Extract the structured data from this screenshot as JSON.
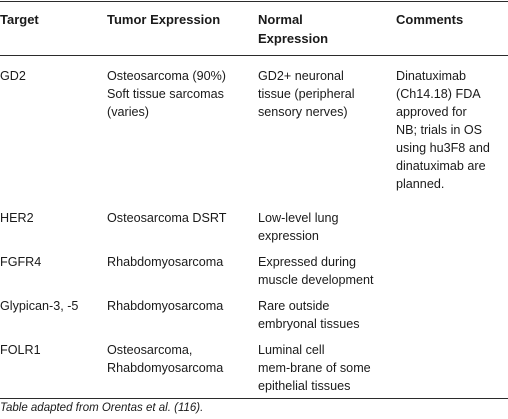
{
  "table": {
    "headers": [
      "Target",
      "Tumor Expression",
      "Normal\nExpression",
      "Comments"
    ],
    "rows": [
      {
        "target": "GD2",
        "tumor": "Osteosarcoma (90%)\nSoft tissue sarcomas\n(varies)",
        "normal": "GD2+ neuronal\ntissue (peripheral\nsensory nerves)",
        "comments": "Dinatuximab\n(Ch14.18) FDA\napproved for\nNB; trials in OS\nusing hu3F8 and\ndinatuximab are\nplanned."
      },
      {
        "target": "HER2",
        "tumor": "Osteosarcoma DSRT",
        "normal": "Low-level lung\nexpression",
        "comments": ""
      },
      {
        "target": "FGFR4",
        "tumor": "Rhabdomyosarcoma",
        "normal": "Expressed during\nmuscle development",
        "comments": ""
      },
      {
        "target": "Glypican-3, -5",
        "tumor": "Rhabdomyosarcoma",
        "normal": "Rare outside\nembryonal tissues",
        "comments": ""
      },
      {
        "target": "FOLR1",
        "tumor": "Osteosarcoma,\nRhabdomyosarcoma",
        "normal": "Luminal cell\nmem-brane of some\nepithelial tissues",
        "comments": ""
      }
    ]
  },
  "caption": {
    "text": "Table adapted from Orentas et al. ",
    "ref": "(116)",
    "end": "."
  }
}
